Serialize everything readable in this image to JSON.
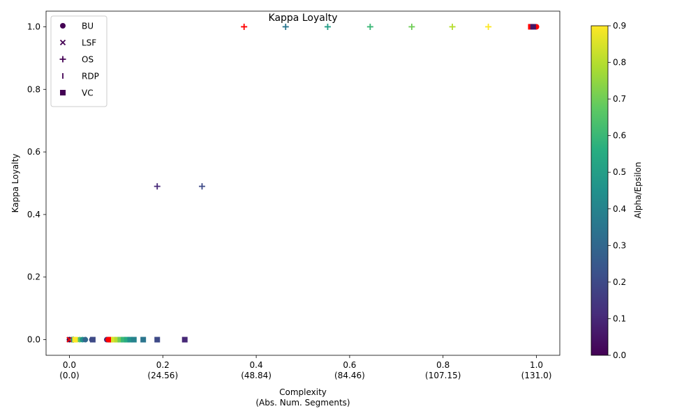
{
  "chart_data": {
    "type": "scatter",
    "title": "Kappa Loyalty",
    "xlabel_line1": "Complexity",
    "xlabel_line2": "(Abs. Num. Segments)",
    "ylabel": "Kappa Loyalty",
    "xlim": [
      -0.05,
      1.05
    ],
    "ylim": [
      -0.05,
      1.05
    ],
    "xticks": [
      {
        "value": 0.0,
        "label": "0.0",
        "sub": "(0.0)"
      },
      {
        "value": 0.2,
        "label": "0.2",
        "sub": "(24.56)"
      },
      {
        "value": 0.4,
        "label": "0.4",
        "sub": "(48.84)"
      },
      {
        "value": 0.6,
        "label": "0.6",
        "sub": "(84.46)"
      },
      {
        "value": 0.8,
        "label": "0.8",
        "sub": "(107.15)"
      },
      {
        "value": 1.0,
        "label": "1.0",
        "sub": "(131.0)"
      }
    ],
    "yticks": [
      {
        "value": 0.0,
        "label": "0.0"
      },
      {
        "value": 0.2,
        "label": "0.2"
      },
      {
        "value": 0.4,
        "label": "0.4"
      },
      {
        "value": 0.6,
        "label": "0.6"
      },
      {
        "value": 0.8,
        "label": "0.8"
      },
      {
        "value": 1.0,
        "label": "1.0"
      }
    ],
    "colorbar": {
      "label": "Alpha/Epsilon",
      "colormap": "viridis",
      "range": [
        0.0,
        0.9
      ],
      "ticks": [
        {
          "value": 0.0,
          "label": "0.0"
        },
        {
          "value": 0.1,
          "label": "0.1"
        },
        {
          "value": 0.2,
          "label": "0.2"
        },
        {
          "value": 0.3,
          "label": "0.3"
        },
        {
          "value": 0.4,
          "label": "0.4"
        },
        {
          "value": 0.5,
          "label": "0.5"
        },
        {
          "value": 0.6,
          "label": "0.6"
        },
        {
          "value": 0.7,
          "label": "0.7"
        },
        {
          "value": 0.8,
          "label": "0.8"
        },
        {
          "value": 0.9,
          "label": "0.9"
        }
      ]
    },
    "highlight_color": "#ff0000",
    "legend": {
      "placement": "top-left",
      "entries": [
        {
          "label": "BU",
          "marker": "circle"
        },
        {
          "label": "LSF",
          "marker": "x"
        },
        {
          "label": "OS",
          "marker": "plus"
        },
        {
          "label": "RDP",
          "marker": "vline"
        },
        {
          "label": "VC",
          "marker": "square"
        }
      ]
    },
    "series": [
      {
        "label": "BU",
        "marker": "circle",
        "points": [
          {
            "x": 0.0,
            "y": 0.0,
            "c": 0.0
          },
          {
            "x": 0.016,
            "y": 0.0,
            "c": 0.85
          },
          {
            "x": 0.022,
            "y": 0.0,
            "c": 0.65
          },
          {
            "x": 0.028,
            "y": 0.0,
            "c": 0.45
          },
          {
            "x": 0.034,
            "y": 0.0,
            "c": 0.3
          },
          {
            "x": 0.048,
            "y": 0.0,
            "c": 0.2
          },
          {
            "x": 0.08,
            "y": 0.0,
            "c": 0.1
          },
          {
            "x": 0.083,
            "y": 0.0,
            "highlight": true
          },
          {
            "x": 0.999,
            "y": 1.0,
            "c": 0.1
          },
          {
            "x": 1.0,
            "y": 1.0,
            "highlight": true
          }
        ]
      },
      {
        "label": "LSF",
        "marker": "x",
        "points": [
          {
            "x": 0.0,
            "y": 0.0,
            "c": 0.9
          },
          {
            "x": 0.0,
            "y": 0.0,
            "c": 0.5
          },
          {
            "x": 0.0,
            "y": 0.0,
            "c": 0.1
          },
          {
            "x": 0.0,
            "y": 0.0,
            "highlight": true
          }
        ]
      },
      {
        "label": "OS",
        "marker": "plus",
        "points": [
          {
            "x": 0.008,
            "y": 0.0,
            "c": 0.6
          },
          {
            "x": 0.188,
            "y": 0.49,
            "c": 0.1
          },
          {
            "x": 0.284,
            "y": 0.49,
            "c": 0.2
          },
          {
            "x": 0.374,
            "y": 1.0,
            "highlight": true
          },
          {
            "x": 0.463,
            "y": 1.0,
            "c": 0.35
          },
          {
            "x": 0.553,
            "y": 1.0,
            "c": 0.5
          },
          {
            "x": 0.644,
            "y": 1.0,
            "c": 0.6
          },
          {
            "x": 0.733,
            "y": 1.0,
            "c": 0.7
          },
          {
            "x": 0.82,
            "y": 1.0,
            "c": 0.8
          },
          {
            "x": 0.897,
            "y": 1.0,
            "c": 0.9
          }
        ]
      },
      {
        "label": "RDP",
        "marker": "vline",
        "points": [
          {
            "x": 0.005,
            "y": 0.0,
            "c": 0.4
          },
          {
            "x": 0.012,
            "y": 0.0,
            "c": 0.8
          }
        ]
      },
      {
        "label": "VC",
        "marker": "square",
        "points": [
          {
            "x": 0.012,
            "y": 0.0,
            "c": 0.9
          },
          {
            "x": 0.05,
            "y": 0.0,
            "c": 0.2
          },
          {
            "x": 0.088,
            "y": 0.0,
            "highlight": true
          },
          {
            "x": 0.095,
            "y": 0.0,
            "c": 0.85
          },
          {
            "x": 0.102,
            "y": 0.0,
            "c": 0.8
          },
          {
            "x": 0.109,
            "y": 0.0,
            "c": 0.7
          },
          {
            "x": 0.116,
            "y": 0.0,
            "c": 0.6
          },
          {
            "x": 0.123,
            "y": 0.0,
            "c": 0.55
          },
          {
            "x": 0.13,
            "y": 0.0,
            "c": 0.45
          },
          {
            "x": 0.138,
            "y": 0.0,
            "c": 0.4
          },
          {
            "x": 0.158,
            "y": 0.0,
            "c": 0.35
          },
          {
            "x": 0.188,
            "y": 0.0,
            "c": 0.2
          },
          {
            "x": 0.247,
            "y": 0.0,
            "c": 0.1
          },
          {
            "x": 0.988,
            "y": 1.0,
            "highlight": true
          },
          {
            "x": 0.993,
            "y": 1.0,
            "c": 0.05
          }
        ]
      }
    ]
  }
}
